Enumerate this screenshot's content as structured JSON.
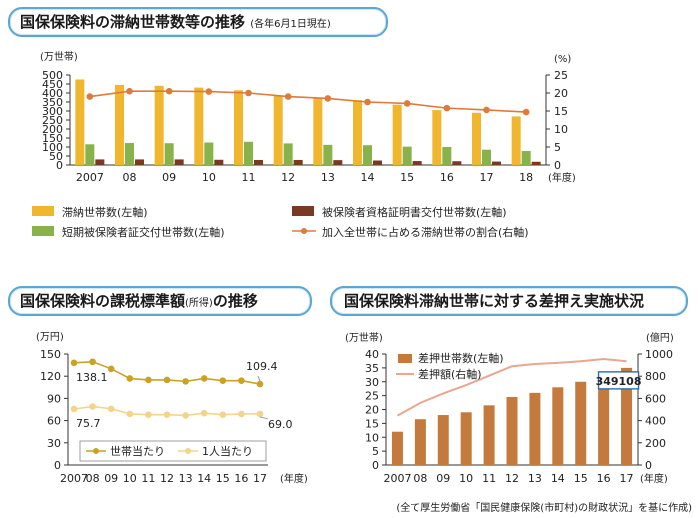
{
  "titles": {
    "main": "国保保険料の滞納世帯数等の推移",
    "main_sub": "(各年6月1日現在)",
    "bottom_left": "国保保険料の課税標準額",
    "bottom_left_sub": "(所得)",
    "bottom_left_suffix": "の推移",
    "bottom_right": "国保保険料滞納世帯に対する差押え実施状況"
  },
  "source": "(全て厚生労働省「国民健康保険(市町村)の財政状況」を基に作成)",
  "chart_data": [
    {
      "type": "bar",
      "categories": [
        "2007",
        "08",
        "09",
        "10",
        "11",
        "12",
        "13",
        "14",
        "15",
        "16",
        "17",
        "18"
      ],
      "x_unit": "(年度)",
      "ylabel": "(万世帯)",
      "ylabel_right": "(%)",
      "ylim": [
        0,
        500
      ],
      "ylim_right": [
        0,
        25
      ],
      "yticks": [
        0,
        50,
        100,
        150,
        200,
        250,
        300,
        350,
        400,
        450,
        500
      ],
      "yticks_right": [
        0,
        5,
        10,
        15,
        20,
        25
      ],
      "grid": false,
      "legend_placement": "bottom",
      "series": [
        {
          "name": "滞納世帯数(左軸)",
          "type": "bar",
          "axis": "left",
          "color": "#f0b62e",
          "values": [
            475,
            445,
            440,
            430,
            415,
            385,
            370,
            360,
            335,
            305,
            290,
            270
          ]
        },
        {
          "name": "短期被保険者証交付世帯数(左軸)",
          "type": "bar",
          "axis": "left",
          "color": "#88b24a",
          "values": [
            115,
            122,
            121,
            125,
            129,
            120,
            112,
            110,
            102,
            100,
            85,
            78
          ]
        },
        {
          "name": "被保険者資格証明書交付世帯数(左軸)",
          "type": "bar",
          "axis": "left",
          "color": "#7a3a22",
          "values": [
            31,
            31,
            31,
            29,
            28,
            28,
            27,
            25,
            22,
            21,
            19,
            18
          ]
        },
        {
          "name": "加入全世帯に占める滞納世帯の割合(右軸)",
          "type": "line",
          "axis": "right",
          "color": "#e07a3a",
          "values": [
            19,
            20.5,
            20.5,
            20.4,
            20,
            19,
            18.5,
            17.5,
            17.1,
            15.8,
            15.3,
            14.7
          ]
        }
      ]
    },
    {
      "type": "line",
      "categories": [
        "2007",
        "08",
        "09",
        "10",
        "11",
        "12",
        "13",
        "14",
        "15",
        "16",
        "17"
      ],
      "x_unit": "(年度)",
      "ylabel": "(万円)",
      "ylim": [
        0,
        150
      ],
      "yticks": [
        0,
        30,
        60,
        90,
        120,
        150
      ],
      "grid": false,
      "legend_placement": "bottom",
      "series": [
        {
          "name": "世帯当たり",
          "color": "#c9a227",
          "values": [
            138.1,
            139.5,
            130,
            117,
            115,
            115,
            113,
            117,
            114,
            114,
            109.4
          ]
        },
        {
          "name": "1人当たり",
          "color": "#f2d58a",
          "values": [
            75.7,
            79,
            76,
            69,
            68,
            68,
            67,
            70,
            68,
            69,
            69.0
          ]
        }
      ],
      "annotations": [
        {
          "series": 0,
          "index": 0,
          "text": "138.1"
        },
        {
          "series": 0,
          "index": 10,
          "text": "109.4"
        },
        {
          "series": 1,
          "index": 0,
          "text": "75.7"
        },
        {
          "series": 1,
          "index": 10,
          "text": "69.0"
        }
      ]
    },
    {
      "type": "bar",
      "categories": [
        "2007",
        "08",
        "09",
        "10",
        "11",
        "12",
        "13",
        "14",
        "15",
        "16",
        "17"
      ],
      "x_unit": "(年度)",
      "ylabel": "(万世帯)",
      "ylabel_right": "(億円)",
      "ylim": [
        0,
        40
      ],
      "ylim_right": [
        0,
        1000
      ],
      "yticks": [
        0,
        5,
        10,
        15,
        20,
        25,
        30,
        35,
        40
      ],
      "yticks_right": [
        0,
        200,
        400,
        600,
        800,
        1000
      ],
      "grid": false,
      "legend_placement": "top-left",
      "series": [
        {
          "name": "差押世帯数(左軸)",
          "type": "bar",
          "axis": "left",
          "color": "#c47a3c",
          "values": [
            12.0,
            16.5,
            18.0,
            19.0,
            21.5,
            24.5,
            26.0,
            28.0,
            30.0,
            33.5,
            35.0
          ]
        },
        {
          "name": "差押額(右軸)",
          "type": "line",
          "axis": "right",
          "color": "#e8a78e",
          "values": [
            445,
            560,
            645,
            720,
            805,
            890,
            910,
            920,
            935,
            955,
            935
          ]
        }
      ],
      "annotations": [
        {
          "series": 0,
          "index": 10,
          "text": "349108"
        }
      ]
    }
  ]
}
